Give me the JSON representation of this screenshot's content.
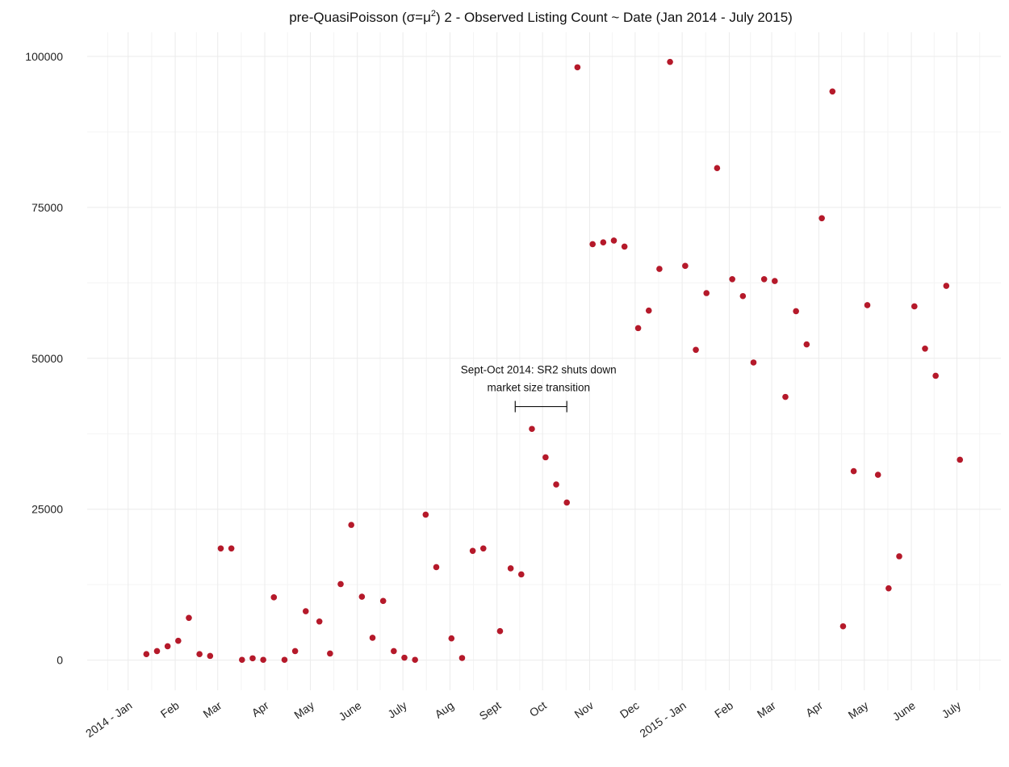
{
  "chart_data": {
    "type": "scatter",
    "title_pre": "pre-QuasiPoisson (σ=μ",
    "title_sup": "2",
    "title_post": ") 2 - Observed Listing Count ~ Date (Jan 2014 - July 2015)",
    "xlabel": "",
    "ylabel": "",
    "grid": true,
    "ylim": [
      -5000,
      104000
    ],
    "xlim": [
      "2013-12-05",
      "2015-07-30"
    ],
    "y_ticks": [
      0,
      25000,
      50000,
      75000,
      100000
    ],
    "y_tick_labels": [
      "0",
      "25000",
      "50000",
      "75000",
      "100000"
    ],
    "x_ticks": [
      "2014-01-01",
      "2014-02-01",
      "2014-03-01",
      "2014-04-01",
      "2014-05-01",
      "2014-06-01",
      "2014-07-01",
      "2014-08-01",
      "2014-09-01",
      "2014-10-01",
      "2014-11-01",
      "2014-12-01",
      "2015-01-01",
      "2015-02-01",
      "2015-03-01",
      "2015-04-01",
      "2015-05-01",
      "2015-06-01",
      "2015-07-01"
    ],
    "x_tick_labels": [
      "2014 - Jan",
      "Feb",
      "Mar",
      "Apr",
      "May",
      "June",
      "July",
      "Aug",
      "Sept",
      "Oct",
      "Nov",
      "Dec",
      "2015 - Jan",
      "Feb",
      "Mar",
      "Apr",
      "May",
      "June",
      "July"
    ],
    "series": [
      {
        "color": "#b5192a",
        "points": [
          {
            "x": "2014-01-13",
            "y": 1000
          },
          {
            "x": "2014-01-20",
            "y": 1500
          },
          {
            "x": "2014-01-27",
            "y": 2300
          },
          {
            "x": "2014-02-03",
            "y": 3200
          },
          {
            "x": "2014-02-10",
            "y": 7000
          },
          {
            "x": "2014-02-17",
            "y": 1000
          },
          {
            "x": "2014-02-24",
            "y": 700
          },
          {
            "x": "2014-03-03",
            "y": 18500
          },
          {
            "x": "2014-03-10",
            "y": 18500
          },
          {
            "x": "2014-03-17",
            "y": 50
          },
          {
            "x": "2014-03-24",
            "y": 300
          },
          {
            "x": "2014-03-31",
            "y": 50
          },
          {
            "x": "2014-04-07",
            "y": 10400
          },
          {
            "x": "2014-04-14",
            "y": 50
          },
          {
            "x": "2014-04-21",
            "y": 1500
          },
          {
            "x": "2014-04-28",
            "y": 8100
          },
          {
            "x": "2014-05-07",
            "y": 6400
          },
          {
            "x": "2014-05-14",
            "y": 1100
          },
          {
            "x": "2014-05-21",
            "y": 12600
          },
          {
            "x": "2014-05-28",
            "y": 22400
          },
          {
            "x": "2014-06-04",
            "y": 10500
          },
          {
            "x": "2014-06-11",
            "y": 3700
          },
          {
            "x": "2014-06-18",
            "y": 9800
          },
          {
            "x": "2014-06-25",
            "y": 1500
          },
          {
            "x": "2014-07-02",
            "y": 400
          },
          {
            "x": "2014-07-09",
            "y": 50
          },
          {
            "x": "2014-07-16",
            "y": 24100
          },
          {
            "x": "2014-07-23",
            "y": 15400
          },
          {
            "x": "2014-08-02",
            "y": 3600
          },
          {
            "x": "2014-08-09",
            "y": 350
          },
          {
            "x": "2014-08-16",
            "y": 18100
          },
          {
            "x": "2014-08-23",
            "y": 18500
          },
          {
            "x": "2014-09-03",
            "y": 4800
          },
          {
            "x": "2014-09-10",
            "y": 15200
          },
          {
            "x": "2014-09-17",
            "y": 14200
          },
          {
            "x": "2014-09-24",
            "y": 38300
          },
          {
            "x": "2014-10-03",
            "y": 33600
          },
          {
            "x": "2014-10-10",
            "y": 29100
          },
          {
            "x": "2014-10-17",
            "y": 26100
          },
          {
            "x": "2014-10-24",
            "y": 98200
          },
          {
            "x": "2014-11-03",
            "y": 68900
          },
          {
            "x": "2014-11-10",
            "y": 69200
          },
          {
            "x": "2014-11-17",
            "y": 69500
          },
          {
            "x": "2014-11-24",
            "y": 68500
          },
          {
            "x": "2014-12-03",
            "y": 55000
          },
          {
            "x": "2014-12-10",
            "y": 57900
          },
          {
            "x": "2014-12-17",
            "y": 64800
          },
          {
            "x": "2014-12-24",
            "y": 99100
          },
          {
            "x": "2015-01-03",
            "y": 65300
          },
          {
            "x": "2015-01-10",
            "y": 51400
          },
          {
            "x": "2015-01-17",
            "y": 60800
          },
          {
            "x": "2015-01-24",
            "y": 81500
          },
          {
            "x": "2015-02-03",
            "y": 63100
          },
          {
            "x": "2015-02-10",
            "y": 60300
          },
          {
            "x": "2015-02-17",
            "y": 49300
          },
          {
            "x": "2015-02-24",
            "y": 63100
          },
          {
            "x": "2015-03-03",
            "y": 62800
          },
          {
            "x": "2015-03-10",
            "y": 43600
          },
          {
            "x": "2015-03-17",
            "y": 57800
          },
          {
            "x": "2015-03-24",
            "y": 52300
          },
          {
            "x": "2015-04-03",
            "y": 73200
          },
          {
            "x": "2015-04-10",
            "y": 94200
          },
          {
            "x": "2015-04-17",
            "y": 5600
          },
          {
            "x": "2015-04-24",
            "y": 31300
          },
          {
            "x": "2015-05-03",
            "y": 58800
          },
          {
            "x": "2015-05-10",
            "y": 30700
          },
          {
            "x": "2015-05-17",
            "y": 11900
          },
          {
            "x": "2015-05-24",
            "y": 17200
          },
          {
            "x": "2015-06-03",
            "y": 58600
          },
          {
            "x": "2015-06-10",
            "y": 51600
          },
          {
            "x": "2015-06-17",
            "y": 47100
          },
          {
            "x": "2015-06-24",
            "y": 62000
          },
          {
            "x": "2015-07-03",
            "y": 33200
          }
        ]
      }
    ],
    "annotation": {
      "line1": "Sept-Oct 2014: SR2 shuts down",
      "line2": "market size transition",
      "x_start": "2014-09-13",
      "x_end": "2014-10-17",
      "y": 42000
    }
  }
}
